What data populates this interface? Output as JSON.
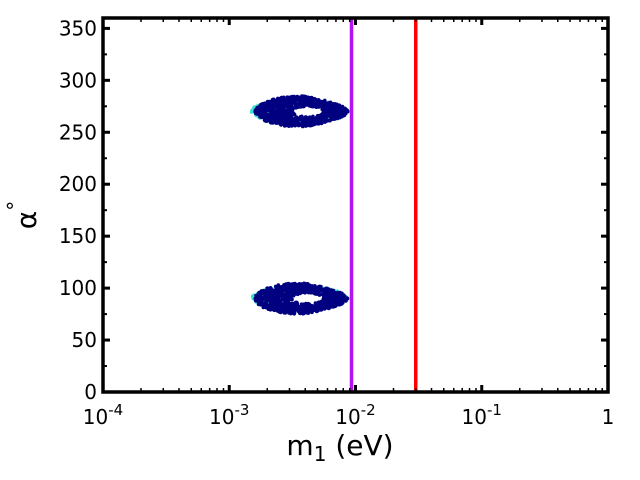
{
  "chart_data": {
    "type": "scatter",
    "xlabel": "m",
    "xlabel_sub": "1",
    "xlabel_unit": " (eV)",
    "ylabel": "α",
    "ylabel_sup": "°",
    "xscale": "log",
    "xlim": [
      0.0001,
      1
    ],
    "ylim": [
      0,
      360
    ],
    "yticks": [
      0,
      50,
      100,
      150,
      200,
      250,
      300,
      350
    ],
    "xticks": [
      {
        "value": 0.0001,
        "base": "10",
        "exp": "-4"
      },
      {
        "value": 0.001,
        "base": "10",
        "exp": "-3"
      },
      {
        "value": 0.01,
        "base": "10",
        "exp": "-2"
      },
      {
        "value": 0.1,
        "base": "10",
        "exp": "-1"
      },
      {
        "value": 1,
        "base": "1",
        "exp": ""
      }
    ],
    "vertical_lines": [
      {
        "x": 0.0093,
        "color": "#b512f0"
      },
      {
        "x": 0.03,
        "color": "#ff0000"
      }
    ],
    "series": [
      {
        "color": "#40e0d0",
        "regions": [
          {
            "x_min": 0.0015,
            "x_max": 0.0085,
            "y_min": 258,
            "y_max": 282
          },
          {
            "x_min": 0.0015,
            "x_max": 0.0085,
            "y_min": 78,
            "y_max": 102
          }
        ]
      },
      {
        "color": "#000080",
        "regions": [
          {
            "x_min": 0.0016,
            "x_max": 0.0087,
            "y_min": 255,
            "y_max": 285,
            "hole_x": 0.0042,
            "hole_y": 270
          },
          {
            "x_min": 0.0016,
            "x_max": 0.0087,
            "y_min": 75,
            "y_max": 105,
            "hole_x": 0.0042,
            "hole_y": 90
          }
        ]
      }
    ]
  }
}
